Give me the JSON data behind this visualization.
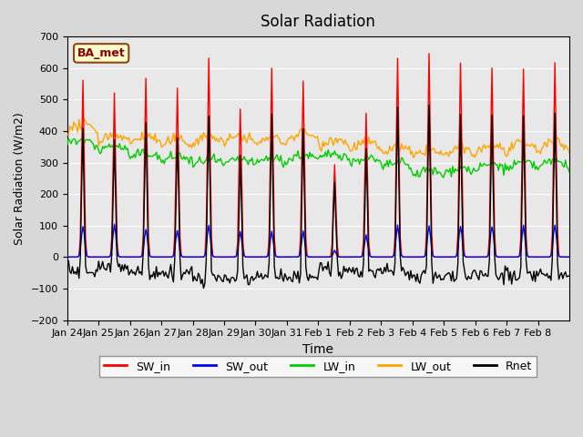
{
  "title": "Solar Radiation",
  "xlabel": "Time",
  "ylabel": "Solar Radiation (W/m2)",
  "annotation": "BA_met",
  "ylim": [
    -200,
    700
  ],
  "yticks": [
    -200,
    -100,
    0,
    100,
    200,
    300,
    400,
    500,
    600,
    700
  ],
  "x_tick_labels": [
    "Jan 24",
    "Jan 25",
    "Jan 26",
    "Jan 27",
    "Jan 28",
    "Jan 29",
    "Jan 30",
    "Jan 31",
    "Feb 1",
    "Feb 2",
    "Feb 3",
    "Feb 4",
    "Feb 5",
    "Feb 6",
    "Feb 7",
    "Feb 8"
  ],
  "colors": {
    "SW_in": "#ff0000",
    "SW_out": "#0000ff",
    "LW_in": "#00cc00",
    "LW_out": "#ffa500",
    "Rnet": "#000000"
  },
  "fig_facecolor": "#d8d8d8",
  "ax_facecolor": "#e8e8e8"
}
